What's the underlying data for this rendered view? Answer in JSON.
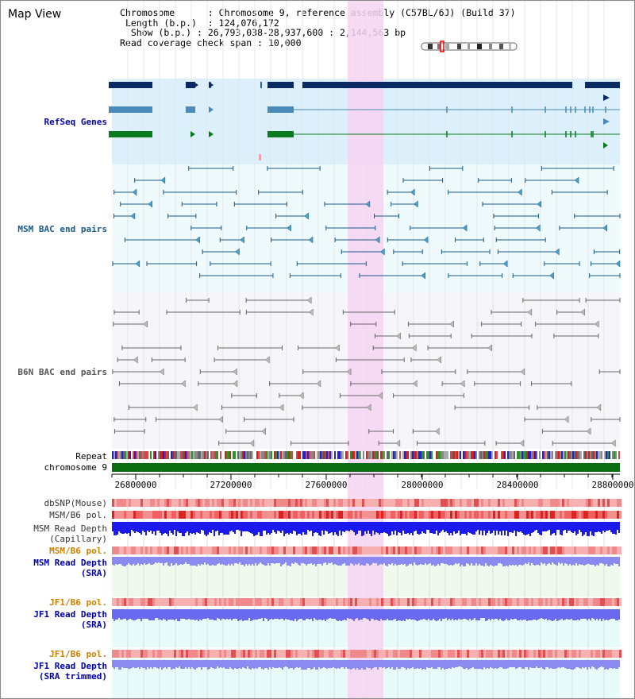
{
  "view_title": "Map View",
  "info": {
    "chromosome_key": "Chromosome",
    "chromosome_val": "Chromosome 9, reference assembly (C57BL/6J) (Build 37)",
    "length_key": "Length (b.p.)",
    "length_val": "124,076,172",
    "show_key": "Show (b.p.)",
    "show_val": "26,793,038-28,937,600 : 2,144,563 bp",
    "span_key": "Read coverage check span",
    "span_val": "10,000"
  },
  "track_labels": {
    "refseq": "RefSeq Genes",
    "msm_bac": "MSM BAC end pairs",
    "b6n_bac": "B6N BAC end pairs",
    "repeat": "Repeat",
    "chromosome": "chromosome 9",
    "dbsnp": "dbSNP(Mouse)",
    "msm_b6_pol": "MSM/B6 pol.",
    "msm_read_depth_cap": "MSM Read Depth\n(Capillary)",
    "msm_b6_pol_sra": "MSM/B6 pol.",
    "msm_read_depth_sra": "MSM Read Depth\n(SRA)",
    "jf1_b6_pol": "JF1/B6 pol.",
    "jf1_read_depth_sra": "JF1 Read Depth\n(SRA)",
    "jf1_b6_pol_trim": "JF1/B6 pol.",
    "jf1_read_depth_trim": "JF1 Read Depth\n(SRA trimmed)"
  },
  "ruler": {
    "ticks": [
      "26800000",
      "27200000",
      "27600000",
      "28000000",
      "28400000",
      "28800000"
    ]
  },
  "colors": {
    "refseq_navy": "#0a2a66",
    "refseq_steel": "#4a8ab8",
    "refseq_green": "#0a7a1e",
    "msm_label": "#1a5a8a",
    "b6n_label": "#555555",
    "blue_label": "#0000aa",
    "orange_label": "#d08000",
    "highlight": "#f6d4f1"
  }
}
